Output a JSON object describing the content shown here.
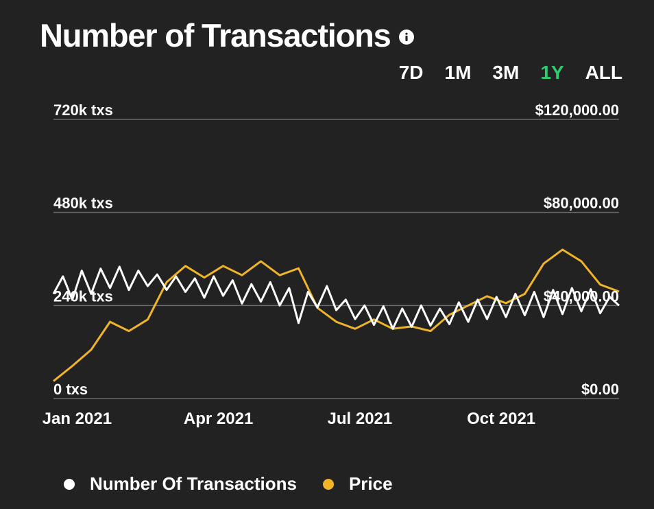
{
  "header": {
    "title": "Number of Transactions",
    "info_icon": "info-icon"
  },
  "ranges": [
    {
      "label": "7D",
      "active": false
    },
    {
      "label": "1M",
      "active": false
    },
    {
      "label": "3M",
      "active": false
    },
    {
      "label": "1Y",
      "active": true
    },
    {
      "label": "ALL",
      "active": false
    }
  ],
  "colors": {
    "background": "#222222",
    "transactions": "#ffffff",
    "price": "#f0b429",
    "active_range": "#2ecc71",
    "gridline": "#6b6b6b"
  },
  "chart_data": {
    "type": "line",
    "title": "Number of Transactions",
    "x_tick_labels": [
      "Jan 2021",
      "Apr 2021",
      "Jul 2021",
      "Oct 2021"
    ],
    "x_tick_months": [
      0.5,
      3.5,
      6.5,
      9.5
    ],
    "x_range_months": [
      0.0,
      12.0
    ],
    "left_axis": {
      "ticks": [
        "0 txs",
        "240k txs",
        "480k txs",
        "720k txs"
      ],
      "tick_values": [
        0,
        240000,
        480000,
        720000
      ],
      "ylim": [
        0,
        720000
      ]
    },
    "right_axis": {
      "ticks": [
        "$0.00",
        "$40,000.00",
        "$80,000.00",
        "$120,000.00"
      ],
      "tick_values": [
        0,
        40000,
        80000,
        120000
      ],
      "ylim": [
        0,
        120000
      ]
    },
    "series": [
      {
        "name": "Number Of Transactions",
        "axis": "left",
        "x_months": [
          0.0,
          0.2,
          0.4,
          0.6,
          0.8,
          1.0,
          1.2,
          1.4,
          1.6,
          1.8,
          2.0,
          2.2,
          2.4,
          2.6,
          2.8,
          3.0,
          3.2,
          3.4,
          3.6,
          3.8,
          4.0,
          4.2,
          4.4,
          4.6,
          4.8,
          5.0,
          5.2,
          5.4,
          5.6,
          5.8,
          6.0,
          6.2,
          6.4,
          6.6,
          6.8,
          7.0,
          7.2,
          7.4,
          7.6,
          7.8,
          8.0,
          8.2,
          8.4,
          8.6,
          8.8,
          9.0,
          9.2,
          9.4,
          9.6,
          9.8,
          10.0,
          10.2,
          10.4,
          10.6,
          10.8,
          11.0,
          11.2,
          11.4,
          11.6,
          11.8,
          12.0
        ],
        "values": [
          270000,
          315000,
          255000,
          330000,
          270000,
          335000,
          285000,
          340000,
          280000,
          330000,
          290000,
          320000,
          280000,
          315000,
          275000,
          310000,
          260000,
          315000,
          265000,
          305000,
          245000,
          295000,
          250000,
          300000,
          240000,
          285000,
          195000,
          275000,
          235000,
          290000,
          228000,
          255000,
          205000,
          240000,
          190000,
          238000,
          180000,
          232000,
          185000,
          240000,
          188000,
          232000,
          192000,
          248000,
          198000,
          255000,
          205000,
          262000,
          210000,
          270000,
          215000,
          275000,
          210000,
          280000,
          218000,
          285000,
          225000,
          282000,
          220000,
          262000,
          240000
        ]
      },
      {
        "name": "Price",
        "axis": "right",
        "x_months": [
          0.0,
          0.4,
          0.8,
          1.2,
          1.6,
          2.0,
          2.4,
          2.8,
          3.2,
          3.6,
          4.0,
          4.4,
          4.8,
          5.2,
          5.6,
          6.0,
          6.4,
          6.8,
          7.2,
          7.6,
          8.0,
          8.4,
          8.8,
          9.2,
          9.6,
          10.0,
          10.4,
          10.8,
          11.2,
          11.6,
          12.0
        ],
        "values": [
          7500,
          14000,
          21000,
          33000,
          29000,
          34000,
          50000,
          57000,
          52000,
          57000,
          53000,
          59000,
          53000,
          56000,
          39000,
          33000,
          30000,
          34000,
          30000,
          31000,
          29000,
          36000,
          40000,
          44000,
          41000,
          45000,
          58000,
          64000,
          59000,
          49000,
          46000
        ]
      }
    ]
  },
  "legend": [
    {
      "label": "Number Of Transactions",
      "color": "#ffffff"
    },
    {
      "label": "Price",
      "color": "#f0b429"
    }
  ]
}
